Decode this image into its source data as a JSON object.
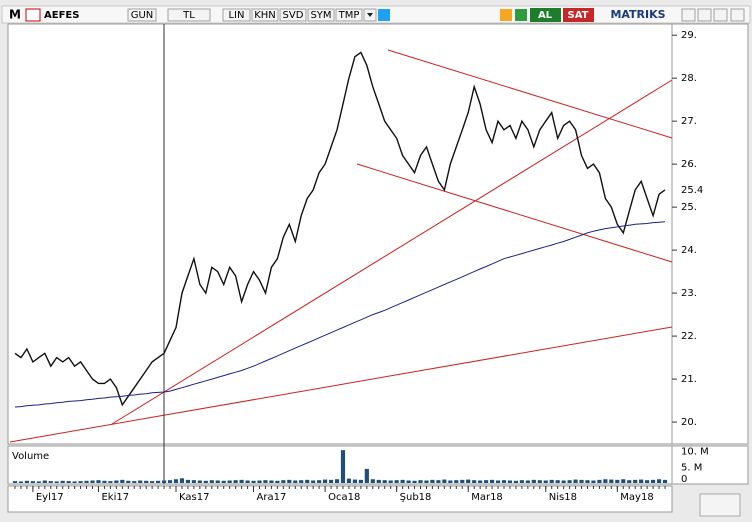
{
  "toolbar": {
    "logo": "M",
    "symbol": "AEFES",
    "buttons": [
      "GUN",
      "TL",
      "LIN",
      "KHN",
      "SVD",
      "SYM",
      "TMP"
    ],
    "buy": "AL",
    "sell": "SAT",
    "brand": "MATRIKS"
  },
  "chart_data": {
    "type": "line",
    "categories": [
      null,
      null,
      null,
      "Eyl17",
      null,
      null,
      null,
      null,
      null,
      null,
      null,
      null,
      null,
      null,
      "Eki17",
      null,
      null,
      null,
      null,
      null,
      null,
      null,
      null,
      null,
      null,
      null,
      null,
      "Kas17",
      null,
      null,
      null,
      null,
      null,
      null,
      null,
      null,
      null,
      null,
      null,
      null,
      "Ara17",
      null,
      null,
      null,
      null,
      null,
      null,
      null,
      null,
      null,
      null,
      null,
      "Oca18",
      null,
      null,
      null,
      null,
      null,
      null,
      null,
      null,
      null,
      null,
      null,
      "Şub18",
      null,
      null,
      null,
      null,
      null,
      null,
      null,
      null,
      null,
      null,
      null,
      "Mar18",
      null,
      null,
      null,
      null,
      null,
      null,
      null,
      null,
      null,
      null,
      null,
      null,
      "Nis18",
      null,
      null,
      null,
      null,
      null,
      null,
      null,
      null,
      null,
      null,
      null,
      "May18",
      null,
      null,
      null,
      null,
      null,
      null,
      null,
      null
    ],
    "series": [
      {
        "color": "#111111",
        "values": [
          21.6,
          21.5,
          21.7,
          21.4,
          21.5,
          21.6,
          21.3,
          21.5,
          21.4,
          21.5,
          21.3,
          21.4,
          21.2,
          21.0,
          20.9,
          20.9,
          21.0,
          20.8,
          20.4,
          20.6,
          20.8,
          21.0,
          21.2,
          21.4,
          21.5,
          21.6,
          21.9,
          22.2,
          23.0,
          23.4,
          23.8,
          23.2,
          23.0,
          23.6,
          23.5,
          23.2,
          23.6,
          23.4,
          22.8,
          23.2,
          23.5,
          23.3,
          23.0,
          23.6,
          23.8,
          24.3,
          24.6,
          24.2,
          24.8,
          25.2,
          25.4,
          25.8,
          26.0,
          26.4,
          26.8,
          27.4,
          28.0,
          28.5,
          28.6,
          28.3,
          27.8,
          27.4,
          27.0,
          26.8,
          26.6,
          26.2,
          26.0,
          25.8,
          26.2,
          26.4,
          26.0,
          25.6,
          25.4,
          26.0,
          26.4,
          26.8,
          27.2,
          27.8,
          27.4,
          26.8,
          26.5,
          27.0,
          26.8,
          26.9,
          26.6,
          27.0,
          26.8,
          26.4,
          26.8,
          27.0,
          27.2,
          26.6,
          26.9,
          27.0,
          26.8,
          26.2,
          25.9,
          26.0,
          25.8,
          25.2,
          25.0,
          24.6,
          24.4,
          24.9,
          25.4,
          25.6,
          25.2,
          24.8,
          25.3,
          25.4
        ]
      },
      {
        "color": "#1a237e",
        "values": [
          20.35,
          20.36,
          20.38,
          20.39,
          20.4,
          20.42,
          20.43,
          20.45,
          20.46,
          20.48,
          20.49,
          20.5,
          20.52,
          20.53,
          20.55,
          20.56,
          20.58,
          20.59,
          20.6,
          20.62,
          20.63,
          20.65,
          20.66,
          20.68,
          20.69,
          20.7,
          20.72,
          20.76,
          20.8,
          20.84,
          20.88,
          20.92,
          20.96,
          21.0,
          21.04,
          21.08,
          21.12,
          21.16,
          21.2,
          21.25,
          21.3,
          21.36,
          21.42,
          21.48,
          21.54,
          21.6,
          21.66,
          21.72,
          21.78,
          21.84,
          21.9,
          21.96,
          22.02,
          22.08,
          22.14,
          22.2,
          22.26,
          22.32,
          22.38,
          22.44,
          22.5,
          22.55,
          22.6,
          22.66,
          22.72,
          22.78,
          22.84,
          22.9,
          22.96,
          23.02,
          23.08,
          23.14,
          23.2,
          23.26,
          23.32,
          23.38,
          23.44,
          23.5,
          23.56,
          23.62,
          23.68,
          23.74,
          23.8,
          23.84,
          23.88,
          23.92,
          23.96,
          24.0,
          24.04,
          24.08,
          24.12,
          24.16,
          24.2,
          24.25,
          24.3,
          24.35,
          24.4,
          24.44,
          24.47,
          24.5,
          24.52,
          24.54,
          24.56,
          24.58,
          24.6,
          24.61,
          24.62,
          24.64,
          24.65,
          24.66
        ]
      }
    ],
    "last_price": 25.4,
    "ylim": [
      19.49,
      29.26
    ],
    "yticks": [
      {
        "value": 20,
        "label": "20."
      },
      {
        "value": 21,
        "label": "21."
      },
      {
        "value": 22,
        "label": "22."
      },
      {
        "value": 23,
        "label": "23."
      },
      {
        "value": 24,
        "label": "24."
      },
      {
        "value": 25,
        "label": "25."
      },
      {
        "value": 26,
        "label": "26."
      },
      {
        "value": 27,
        "label": "27."
      },
      {
        "value": 28,
        "label": "28."
      },
      {
        "value": 29,
        "label": "29."
      }
    ],
    "volume": {
      "title": "Volume",
      "color": "#1f4e79",
      "ylim": [
        0,
        11.5
      ],
      "yticks": [
        {
          "value": 10,
          "label": "10. M"
        },
        {
          "value": 5,
          "label": "5. M"
        },
        0
      ],
      "values": [
        0.6,
        0.5,
        0.7,
        0.6,
        0.5,
        0.8,
        0.6,
        0.5,
        0.7,
        0.6,
        0.5,
        0.6,
        0.7,
        0.8,
        0.9,
        0.7,
        0.6,
        0.8,
        1.0,
        0.7,
        0.6,
        0.8,
        0.7,
        0.6,
        0.7,
        0.8,
        0.9,
        1.2,
        1.5,
        1.0,
        0.9,
        0.8,
        0.7,
        0.9,
        0.8,
        0.7,
        0.8,
        0.9,
        1.0,
        0.8,
        0.7,
        0.8,
        0.9,
        0.8,
        0.7,
        0.9,
        1.0,
        0.8,
        0.9,
        1.0,
        0.8,
        0.9,
        1.1,
        1.0,
        1.2,
        10.5,
        1.4,
        1.1,
        1.0,
        4.5,
        1.2,
        1.0,
        0.9,
        0.8,
        0.9,
        1.0,
        0.8,
        0.7,
        0.9,
        0.8,
        1.0,
        0.9,
        1.1,
        0.8,
        0.9,
        1.0,
        1.1,
        0.9,
        0.8,
        0.9,
        1.0,
        0.8,
        0.9,
        0.8,
        0.7,
        0.9,
        0.8,
        1.0,
        0.9,
        0.8,
        1.0,
        0.9,
        0.8,
        0.9,
        1.1,
        1.0,
        0.9,
        0.8,
        1.0,
        1.2,
        1.1,
        1.0,
        1.2,
        0.9,
        1.0,
        1.1,
        0.9,
        1.0,
        1.2,
        1.0
      ]
    }
  }
}
